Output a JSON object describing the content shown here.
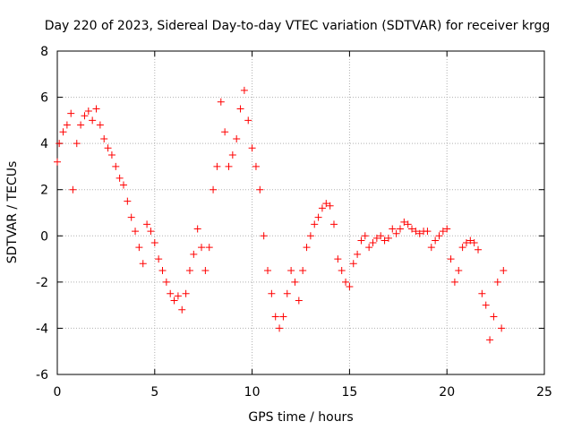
{
  "chart_data": {
    "type": "scatter",
    "title": "Day 220 of 2023, Sidereal Day-to-day VTEC variation (SDTVAR) for receiver krgg",
    "xlabel": "GPS time / hours",
    "ylabel": "SDTVAR / TECUs",
    "xlim": [
      0,
      25
    ],
    "ylim": [
      -6,
      8
    ],
    "xticks": [
      "0",
      "5",
      "10",
      "15",
      "20",
      "25"
    ],
    "yticks": [
      "-6",
      "-4",
      "-2",
      "0",
      "2",
      "4",
      "6",
      "8"
    ],
    "grid": true,
    "marker": "+",
    "color": "#ff0000",
    "series": [
      {
        "name": "SDTVAR",
        "x": [
          0.0,
          0.1,
          0.3,
          0.5,
          0.7,
          0.8,
          1.0,
          1.2,
          1.4,
          1.6,
          1.8,
          2.0,
          2.2,
          2.4,
          2.6,
          2.8,
          3.0,
          3.2,
          3.4,
          3.6,
          3.8,
          4.0,
          4.2,
          4.4,
          4.6,
          4.8,
          5.0,
          5.2,
          5.4,
          5.6,
          5.8,
          6.0,
          6.2,
          6.4,
          6.6,
          6.8,
          7.0,
          7.2,
          7.4,
          7.6,
          7.8,
          8.0,
          8.2,
          8.4,
          8.6,
          8.8,
          9.0,
          9.2,
          9.4,
          9.6,
          9.8,
          10.0,
          10.2,
          10.4,
          10.6,
          10.8,
          11.0,
          11.2,
          11.4,
          11.6,
          11.8,
          12.0,
          12.2,
          12.4,
          12.6,
          12.8,
          13.0,
          13.2,
          13.4,
          13.6,
          13.8,
          14.0,
          14.2,
          14.4,
          14.6,
          14.8,
          15.0,
          15.2,
          15.4,
          15.6,
          15.8,
          16.0,
          16.2,
          16.4,
          16.6,
          16.8,
          17.0,
          17.2,
          17.4,
          17.6,
          17.8,
          18.0,
          18.2,
          18.4,
          18.6,
          18.8,
          19.0,
          19.2,
          19.4,
          19.6,
          19.8,
          20.0,
          20.2,
          20.4,
          20.6,
          20.8,
          21.0,
          21.2,
          21.4,
          21.6,
          21.8,
          22.0,
          22.2,
          22.4,
          22.6,
          22.8,
          22.9
        ],
        "y": [
          3.2,
          4.0,
          4.5,
          4.8,
          5.3,
          2.0,
          4.0,
          4.8,
          5.2,
          5.4,
          5.0,
          5.5,
          4.8,
          4.2,
          3.8,
          3.5,
          3.0,
          2.5,
          2.2,
          1.5,
          0.8,
          0.2,
          -0.5,
          -1.2,
          0.5,
          0.2,
          -0.3,
          -1.0,
          -1.5,
          -2.0,
          -2.5,
          -2.8,
          -2.6,
          -3.2,
          -2.5,
          -1.5,
          -0.8,
          0.3,
          -0.5,
          -1.5,
          -0.5,
          2.0,
          3.0,
          5.8,
          4.5,
          3.0,
          3.5,
          4.2,
          5.5,
          6.3,
          5.0,
          3.8,
          3.0,
          2.0,
          0.0,
          -1.5,
          -2.5,
          -3.5,
          -4.0,
          -3.5,
          -2.5,
          -1.5,
          -2.0,
          -2.8,
          -1.5,
          -0.5,
          0.0,
          0.5,
          0.8,
          1.2,
          1.4,
          1.3,
          0.5,
          -1.0,
          -1.5,
          -2.0,
          -2.2,
          -1.2,
          -0.8,
          -0.2,
          0.0,
          -0.5,
          -0.3,
          -0.1,
          0.0,
          -0.2,
          -0.1,
          0.3,
          0.1,
          0.3,
          0.6,
          0.5,
          0.3,
          0.2,
          0.1,
          0.2,
          0.2,
          -0.5,
          -0.2,
          0.0,
          0.2,
          0.3,
          -1.0,
          -2.0,
          -1.5,
          -0.5,
          -0.3,
          -0.2,
          -0.3,
          -0.6,
          -2.5,
          -3.0,
          -4.5,
          -3.5,
          -2.0,
          -4.0,
          -1.5
        ]
      }
    ]
  }
}
